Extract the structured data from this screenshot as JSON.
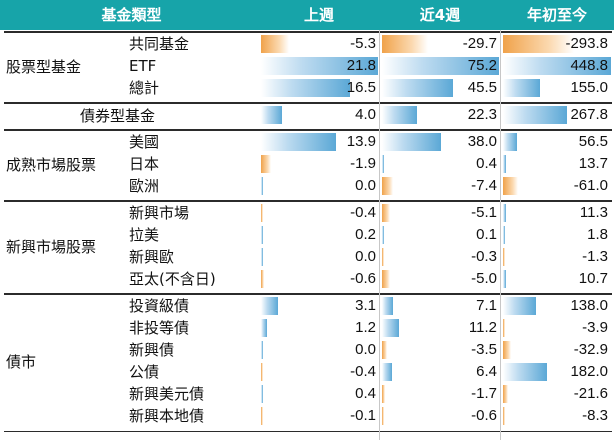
{
  "header": {
    "category": "基金類型",
    "columns": [
      "上週",
      "近4週",
      "年初至今"
    ],
    "bg_color": "#17a4a9"
  },
  "colors": {
    "positive_bar": "#5ba8d6",
    "negative_bar": "#f0a24a"
  },
  "groups": [
    {
      "label": "股票型基金",
      "rows": [
        {
          "name": "共同基金",
          "values": [
            -5.3,
            -29.7,
            -293.8
          ]
        },
        {
          "name": "ETF",
          "values": [
            21.8,
            75.2,
            448.8
          ]
        },
        {
          "name": "總計",
          "values": [
            16.5,
            45.5,
            155.0
          ]
        }
      ]
    },
    {
      "label": "債券型基金",
      "single": true,
      "rows": [
        {
          "name": "",
          "values": [
            4.0,
            22.3,
            267.8
          ]
        }
      ]
    },
    {
      "label": "成熟市場股票",
      "rows": [
        {
          "name": "美國",
          "values": [
            13.9,
            38.0,
            56.5
          ]
        },
        {
          "name": "日本",
          "values": [
            -1.9,
            0.4,
            13.7
          ]
        },
        {
          "name": "歐洲",
          "values": [
            0.0,
            -7.4,
            -61.0
          ]
        }
      ]
    },
    {
      "label": "新興市場股票",
      "rows": [
        {
          "name": "新興市場",
          "values": [
            -0.4,
            -5.1,
            11.3
          ]
        },
        {
          "name": "拉美",
          "values": [
            0.2,
            0.1,
            1.8
          ]
        },
        {
          "name": "新興歐",
          "values": [
            0.0,
            -0.3,
            -1.3
          ]
        },
        {
          "name": "亞太(不含日)",
          "values": [
            -0.6,
            -5.0,
            10.7
          ]
        }
      ]
    },
    {
      "label": "債市",
      "rows": [
        {
          "name": "投資級債",
          "values": [
            3.1,
            7.1,
            138.0
          ]
        },
        {
          "name": "非投等債",
          "values": [
            1.2,
            11.2,
            -3.9
          ]
        },
        {
          "name": "新興債",
          "values": [
            0.0,
            -3.5,
            -32.9
          ]
        },
        {
          "name": "公債",
          "values": [
            -0.4,
            6.4,
            182.0
          ]
        },
        {
          "name": "新興美元債",
          "values": [
            0.4,
            -1.7,
            -21.6
          ]
        },
        {
          "name": "新興本地債",
          "values": [
            -0.1,
            -0.6,
            -8.3
          ]
        }
      ]
    }
  ]
}
